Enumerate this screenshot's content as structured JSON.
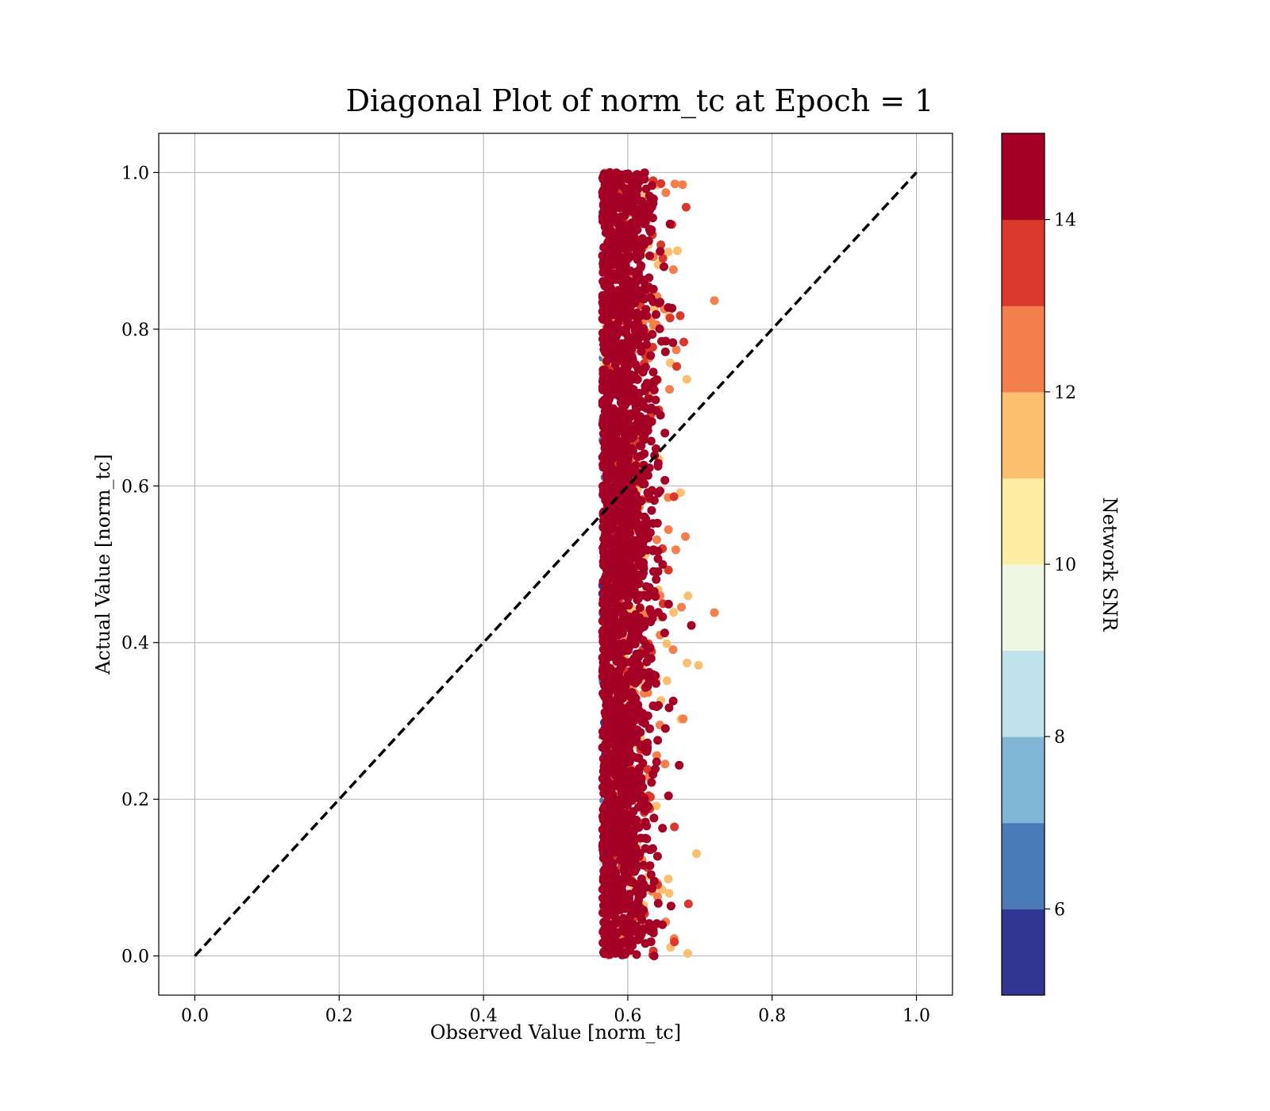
{
  "chart_data": {
    "type": "scatter",
    "title": "Diagonal Plot of norm_tc at Epoch = 1",
    "xlabel": "Observed Value [norm_tc]",
    "ylabel": "Actual Value [norm_tc]",
    "xlim": [
      -0.05,
      1.05
    ],
    "ylim": [
      -0.05,
      1.05
    ],
    "xticks": [
      "0.0",
      "0.2",
      "0.4",
      "0.6",
      "0.8",
      "1.0"
    ],
    "yticks": [
      "0.0",
      "0.2",
      "0.4",
      "0.6",
      "0.8",
      "1.0"
    ],
    "grid": true,
    "reference_line": {
      "style": "dashed",
      "color": "#000000",
      "from": [
        0,
        0
      ],
      "to": [
        1,
        1
      ]
    },
    "scatter_summary": {
      "x_range": [
        0.54,
        0.72
      ],
      "x_core": 0.59,
      "y_range": [
        0.0,
        1.0
      ],
      "color_variable": "Network SNR",
      "point_count_estimate": 3000
    },
    "colorbar": {
      "label": "Network SNR",
      "range": [
        5,
        15
      ],
      "ticks": [
        "6",
        "8",
        "10",
        "12",
        "14"
      ],
      "tick_values": [
        6,
        8,
        10,
        12,
        14
      ],
      "levels": [
        5,
        6,
        7,
        8,
        9,
        10,
        11,
        12,
        13,
        14,
        15
      ],
      "colors": [
        "#313695",
        "#4575b4",
        "#74add1",
        "#abd9e9",
        "#e0f3f8",
        "#fee090",
        "#fdae61",
        "#f46d43",
        "#d73027",
        "#a50026"
      ],
      "display_colors": [
        "#313695",
        "#4a7bb7",
        "#81b6d6",
        "#c0e3ec",
        "#eef7e1",
        "#feeca3",
        "#fcbf6f",
        "#f57f4c",
        "#da382a",
        "#a50026"
      ]
    }
  }
}
